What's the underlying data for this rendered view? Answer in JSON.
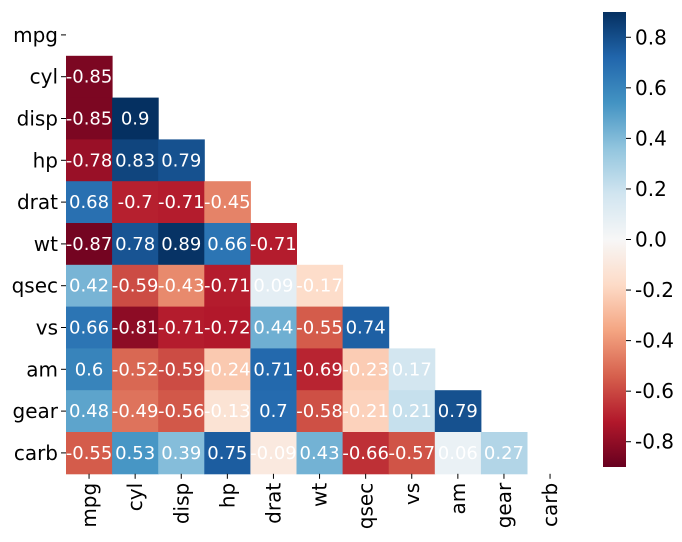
{
  "chart_data": {
    "type": "heatmap",
    "title": "",
    "variables": [
      "mpg",
      "cyl",
      "disp",
      "hp",
      "drat",
      "wt",
      "qsec",
      "vs",
      "am",
      "gear",
      "carb"
    ],
    "mask": "upper-triangle-including-diagonal",
    "cells": [
      {
        "row": "cyl",
        "col": "mpg",
        "value": -0.85,
        "label": "-0.85"
      },
      {
        "row": "disp",
        "col": "mpg",
        "value": -0.85,
        "label": "-0.85"
      },
      {
        "row": "disp",
        "col": "cyl",
        "value": 0.9,
        "label": "0.9"
      },
      {
        "row": "hp",
        "col": "mpg",
        "value": -0.78,
        "label": "-0.78"
      },
      {
        "row": "hp",
        "col": "cyl",
        "value": 0.83,
        "label": "0.83"
      },
      {
        "row": "hp",
        "col": "disp",
        "value": 0.79,
        "label": "0.79"
      },
      {
        "row": "drat",
        "col": "mpg",
        "value": 0.68,
        "label": "0.68"
      },
      {
        "row": "drat",
        "col": "cyl",
        "value": -0.7,
        "label": "-0.7"
      },
      {
        "row": "drat",
        "col": "disp",
        "value": -0.71,
        "label": "-0.71"
      },
      {
        "row": "drat",
        "col": "hp",
        "value": -0.45,
        "label": "-0.45"
      },
      {
        "row": "wt",
        "col": "mpg",
        "value": -0.87,
        "label": "-0.87"
      },
      {
        "row": "wt",
        "col": "cyl",
        "value": 0.78,
        "label": "0.78"
      },
      {
        "row": "wt",
        "col": "disp",
        "value": 0.89,
        "label": "0.89"
      },
      {
        "row": "wt",
        "col": "hp",
        "value": 0.66,
        "label": "0.66"
      },
      {
        "row": "wt",
        "col": "drat",
        "value": -0.71,
        "label": "-0.71"
      },
      {
        "row": "qsec",
        "col": "mpg",
        "value": 0.42,
        "label": "0.42"
      },
      {
        "row": "qsec",
        "col": "cyl",
        "value": -0.59,
        "label": "-0.59"
      },
      {
        "row": "qsec",
        "col": "disp",
        "value": -0.43,
        "label": "-0.43"
      },
      {
        "row": "qsec",
        "col": "hp",
        "value": -0.71,
        "label": "-0.71"
      },
      {
        "row": "qsec",
        "col": "drat",
        "value": 0.09,
        "label": "0.09"
      },
      {
        "row": "qsec",
        "col": "wt",
        "value": -0.17,
        "label": "-0.17"
      },
      {
        "row": "vs",
        "col": "mpg",
        "value": 0.66,
        "label": "0.66"
      },
      {
        "row": "vs",
        "col": "cyl",
        "value": -0.81,
        "label": "-0.81"
      },
      {
        "row": "vs",
        "col": "disp",
        "value": -0.71,
        "label": "-0.71"
      },
      {
        "row": "vs",
        "col": "hp",
        "value": -0.72,
        "label": "-0.72"
      },
      {
        "row": "vs",
        "col": "drat",
        "value": 0.44,
        "label": "0.44"
      },
      {
        "row": "vs",
        "col": "wt",
        "value": -0.55,
        "label": "-0.55"
      },
      {
        "row": "vs",
        "col": "qsec",
        "value": 0.74,
        "label": "0.74"
      },
      {
        "row": "am",
        "col": "mpg",
        "value": 0.6,
        "label": "0.6"
      },
      {
        "row": "am",
        "col": "cyl",
        "value": -0.52,
        "label": "-0.52"
      },
      {
        "row": "am",
        "col": "disp",
        "value": -0.59,
        "label": "-0.59"
      },
      {
        "row": "am",
        "col": "hp",
        "value": -0.24,
        "label": "-0.24"
      },
      {
        "row": "am",
        "col": "drat",
        "value": 0.71,
        "label": "0.71"
      },
      {
        "row": "am",
        "col": "wt",
        "value": -0.69,
        "label": "-0.69"
      },
      {
        "row": "am",
        "col": "qsec",
        "value": -0.23,
        "label": "-0.23"
      },
      {
        "row": "am",
        "col": "vs",
        "value": 0.17,
        "label": "0.17"
      },
      {
        "row": "gear",
        "col": "mpg",
        "value": 0.48,
        "label": "0.48"
      },
      {
        "row": "gear",
        "col": "cyl",
        "value": -0.49,
        "label": "-0.49"
      },
      {
        "row": "gear",
        "col": "disp",
        "value": -0.56,
        "label": "-0.56"
      },
      {
        "row": "gear",
        "col": "hp",
        "value": -0.13,
        "label": "-0.13"
      },
      {
        "row": "gear",
        "col": "drat",
        "value": 0.7,
        "label": "0.7"
      },
      {
        "row": "gear",
        "col": "wt",
        "value": -0.58,
        "label": "-0.58"
      },
      {
        "row": "gear",
        "col": "qsec",
        "value": -0.21,
        "label": "-0.21"
      },
      {
        "row": "gear",
        "col": "vs",
        "value": 0.21,
        "label": "0.21"
      },
      {
        "row": "gear",
        "col": "am",
        "value": 0.79,
        "label": "0.79"
      },
      {
        "row": "carb",
        "col": "mpg",
        "value": -0.55,
        "label": "-0.55"
      },
      {
        "row": "carb",
        "col": "cyl",
        "value": 0.53,
        "label": "0.53"
      },
      {
        "row": "carb",
        "col": "disp",
        "value": 0.39,
        "label": "0.39"
      },
      {
        "row": "carb",
        "col": "hp",
        "value": 0.75,
        "label": "0.75"
      },
      {
        "row": "carb",
        "col": "drat",
        "value": -0.09,
        "label": "-0.09"
      },
      {
        "row": "carb",
        "col": "wt",
        "value": 0.43,
        "label": "0.43"
      },
      {
        "row": "carb",
        "col": "qsec",
        "value": -0.66,
        "label": "-0.66"
      },
      {
        "row": "carb",
        "col": "vs",
        "value": -0.57,
        "label": "-0.57"
      },
      {
        "row": "carb",
        "col": "am",
        "value": 0.06,
        "label": "0.06"
      },
      {
        "row": "carb",
        "col": "gear",
        "value": 0.27,
        "label": "0.27"
      }
    ],
    "colorbar": {
      "min": -0.9,
      "max": 0.9,
      "ticks": [
        -0.8,
        -0.6,
        -0.4,
        -0.2,
        0.0,
        0.2,
        0.4,
        0.6,
        0.8
      ],
      "tick_labels": [
        "-0.8",
        "-0.6",
        "-0.4",
        "-0.2",
        "0.0",
        "0.2",
        "0.4",
        "0.6",
        "0.8"
      ],
      "colormap": "RdBu",
      "colormap_stops": [
        "#67001f",
        "#b2182b",
        "#d6604d",
        "#f4a582",
        "#fddbc7",
        "#f7f7f7",
        "#d1e5f0",
        "#92c5de",
        "#4393c3",
        "#2166ac",
        "#053061"
      ],
      "position": "right"
    },
    "legend": "none"
  }
}
